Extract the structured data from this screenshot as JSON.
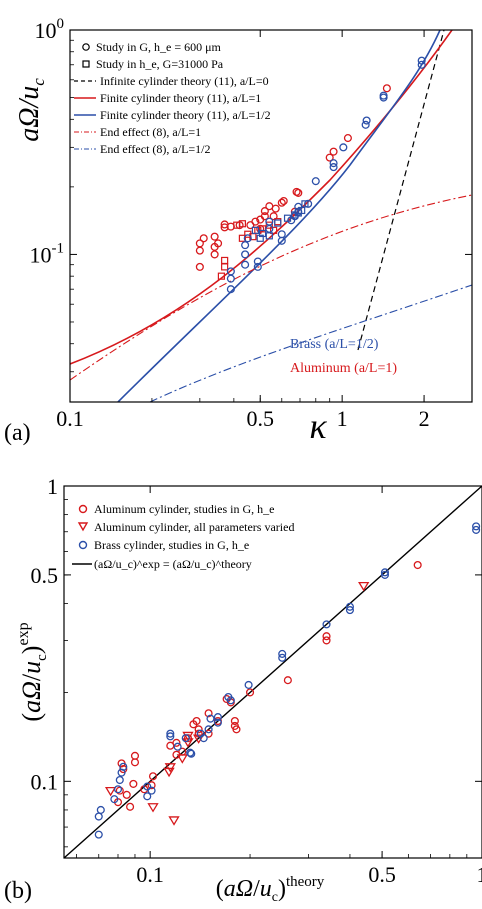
{
  "chart_data": [
    {
      "panel_label": "(a)",
      "type": "scatter",
      "xscale": "log",
      "yscale": "log",
      "xlim": [
        0.1,
        3.0
      ],
      "ylim": [
        0.022,
        1.0
      ],
      "xlabel": "κ",
      "ylabel": "aΩ/u_c",
      "xticks": [
        {
          "value": 0.1,
          "label": "0.1"
        },
        {
          "value": 0.5,
          "label": "0.5"
        },
        {
          "value": 1,
          "label": "1"
        },
        {
          "value": 2,
          "label": "2"
        }
      ],
      "yticks": [
        {
          "value": 0.1,
          "label": "10^-1"
        },
        {
          "value": 1,
          "label": "10^0"
        }
      ],
      "legend": {
        "placement": "top-left",
        "entries": [
          {
            "marker": "circle",
            "color": "#000000",
            "label": "Study in G, h_e = 600 μm"
          },
          {
            "marker": "square",
            "color": "#000000",
            "label": "Study in h_e, G=31000 Pa"
          },
          {
            "line": "dashed",
            "color": "#000000",
            "label": "Infinite cylinder theory (11), a/L=0"
          },
          {
            "line": "solid",
            "color": "#d7191c",
            "label": "Finite cylinder theory (11), a/L=1"
          },
          {
            "line": "solid",
            "color": "#2b4fa8",
            "label": "Finite cylinder theory (11), a/L=1/2"
          },
          {
            "line": "dashdot",
            "color": "#d7191c",
            "label": "End effect (8), a/L=1"
          },
          {
            "line": "dashdot",
            "color": "#2b4fa8",
            "label": "End effect (8), a/L=1/2"
          }
        ]
      },
      "annotations": [
        {
          "text": "Brass (a/L=1/2)",
          "color": "#2b4fa8"
        },
        {
          "text": "Aluminum (a/L=1)",
          "color": "#d7191c"
        }
      ],
      "series": [
        {
          "kind": "points",
          "marker": "circle",
          "color": "#d7191c",
          "points": [
            [
              0.3,
              0.088
            ],
            [
              0.3,
              0.104
            ],
            [
              0.3,
              0.112
            ],
            [
              0.31,
              0.118
            ],
            [
              0.34,
              0.1
            ],
            [
              0.34,
              0.108
            ],
            [
              0.34,
              0.12
            ],
            [
              0.35,
              0.112
            ],
            [
              0.37,
              0.132
            ],
            [
              0.37,
              0.136
            ],
            [
              0.39,
              0.133
            ],
            [
              0.42,
              0.135
            ],
            [
              0.46,
              0.135
            ],
            [
              0.48,
              0.14
            ],
            [
              0.5,
              0.13
            ],
            [
              0.5,
              0.143
            ],
            [
              0.52,
              0.148
            ],
            [
              0.52,
              0.156
            ],
            [
              0.54,
              0.164
            ],
            [
              0.56,
              0.148
            ],
            [
              0.57,
              0.16
            ],
            [
              0.6,
              0.17
            ],
            [
              0.61,
              0.173
            ],
            [
              0.67,
              0.155
            ],
            [
              0.68,
              0.19
            ],
            [
              0.69,
              0.188
            ],
            [
              0.9,
              0.27
            ],
            [
              0.93,
              0.287
            ],
            [
              1.05,
              0.33
            ],
            [
              1.46,
              0.55
            ]
          ]
        },
        {
          "kind": "points",
          "marker": "square",
          "color": "#d7191c",
          "points": [
            [
              0.36,
              0.08
            ],
            [
              0.37,
              0.088
            ],
            [
              0.37,
              0.094
            ],
            [
              0.43,
              0.118
            ],
            [
              0.45,
              0.123
            ],
            [
              0.47,
              0.12
            ],
            [
              0.49,
              0.128
            ],
            [
              0.51,
              0.13
            ],
            [
              0.54,
              0.135
            ],
            [
              0.56,
              0.128
            ],
            [
              0.58,
              0.14
            ],
            [
              0.41,
              0.135
            ],
            [
              0.43,
              0.137
            ]
          ]
        },
        {
          "kind": "points",
          "marker": "circle",
          "color": "#2b4fa8",
          "points": [
            [
              0.39,
              0.07
            ],
            [
              0.39,
              0.078
            ],
            [
              0.39,
              0.084
            ],
            [
              0.44,
              0.09
            ],
            [
              0.44,
              0.1
            ],
            [
              0.44,
              0.11
            ],
            [
              0.45,
              0.118
            ],
            [
              0.49,
              0.088
            ],
            [
              0.49,
              0.093
            ],
            [
              0.54,
              0.13
            ],
            [
              0.54,
              0.14
            ],
            [
              0.6,
              0.115
            ],
            [
              0.6,
              0.123
            ],
            [
              0.65,
              0.142
            ],
            [
              0.67,
              0.148
            ],
            [
              0.69,
              0.155
            ],
            [
              0.69,
              0.163
            ],
            [
              0.75,
              0.168
            ],
            [
              0.8,
              0.212
            ],
            [
              0.93,
              0.245
            ],
            [
              0.93,
              0.255
            ],
            [
              1.01,
              0.3
            ],
            [
              1.22,
              0.378
            ],
            [
              1.23,
              0.395
            ],
            [
              1.42,
              0.5
            ],
            [
              1.42,
              0.51
            ],
            [
              1.96,
              0.7
            ],
            [
              1.96,
              0.73
            ]
          ]
        },
        {
          "kind": "points",
          "marker": "square",
          "color": "#2b4fa8",
          "points": [
            [
              0.48,
              0.128
            ],
            [
              0.5,
              0.118
            ],
            [
              0.51,
              0.124
            ],
            [
              0.54,
              0.121
            ],
            [
              0.58,
              0.138
            ],
            [
              0.63,
              0.145
            ],
            [
              0.67,
              0.15
            ],
            [
              0.69,
              0.153
            ],
            [
              0.71,
              0.157
            ],
            [
              0.73,
              0.168
            ]
          ]
        }
      ]
    },
    {
      "panel_label": "(b)",
      "type": "scatter",
      "xscale": "log",
      "yscale": "log",
      "xlim": [
        0.055,
        1.0
      ],
      "ylim": [
        0.055,
        1.0
      ],
      "xlabel": "(aΩ/u_c)^theory",
      "ylabel": "(aΩ/u_c)^exp",
      "xticks": [
        {
          "value": 0.1,
          "label": "0.1"
        },
        {
          "value": 0.5,
          "label": "0.5"
        },
        {
          "value": 1,
          "label": "1"
        }
      ],
      "yticks": [
        {
          "value": 0.1,
          "label": "0.1"
        },
        {
          "value": 0.5,
          "label": "0.5"
        },
        {
          "value": 1,
          "label": "1"
        }
      ],
      "legend": {
        "placement": "top-left",
        "entries": [
          {
            "marker": "circle",
            "color": "#d7191c",
            "label": "Aluminum cylinder, studies in G, h_e"
          },
          {
            "marker": "triangle-down",
            "color": "#d7191c",
            "label": "Aluminum cylinder, all parameters varied"
          },
          {
            "marker": "circle",
            "color": "#2b4fa8",
            "label": "Brass cylinder, studies in G, h_e"
          },
          {
            "line": "solid",
            "color": "#000000",
            "label": "(aΩ/u_c)^exp = (aΩ/u_c)^theory"
          }
        ]
      },
      "series": [
        {
          "kind": "points",
          "marker": "circle",
          "color": "#d7191c",
          "points": [
            [
              0.08,
              0.085
            ],
            [
              0.081,
              0.093
            ],
            [
              0.082,
              0.115
            ],
            [
              0.083,
              0.11
            ],
            [
              0.085,
              0.09
            ],
            [
              0.087,
              0.082
            ],
            [
              0.089,
              0.098
            ],
            [
              0.09,
              0.116
            ],
            [
              0.09,
              0.122
            ],
            [
              0.096,
              0.094
            ],
            [
              0.101,
              0.097
            ],
            [
              0.102,
              0.104
            ],
            [
              0.115,
              0.132
            ],
            [
              0.12,
              0.123
            ],
            [
              0.12,
              0.135
            ],
            [
              0.125,
              0.126
            ],
            [
              0.13,
              0.14
            ],
            [
              0.135,
              0.156
            ],
            [
              0.138,
              0.16
            ],
            [
              0.14,
              0.15
            ],
            [
              0.14,
              0.145
            ],
            [
              0.15,
              0.145
            ],
            [
              0.15,
              0.17
            ],
            [
              0.16,
              0.16
            ],
            [
              0.17,
              0.19
            ],
            [
              0.175,
              0.185
            ],
            [
              0.18,
              0.16
            ],
            [
              0.18,
              0.154
            ],
            [
              0.182,
              0.15
            ],
            [
              0.2,
              0.2
            ],
            [
              0.26,
              0.22
            ],
            [
              0.34,
              0.31
            ],
            [
              0.34,
              0.3
            ],
            [
              0.64,
              0.54
            ]
          ]
        },
        {
          "kind": "points",
          "marker": "triangle-down",
          "color": "#d7191c",
          "points": [
            [
              0.076,
              0.093
            ],
            [
              0.102,
              0.082
            ],
            [
              0.114,
              0.108
            ],
            [
              0.115,
              0.112
            ],
            [
              0.125,
              0.12
            ],
            [
              0.13,
              0.136
            ],
            [
              0.13,
              0.143
            ],
            [
              0.14,
              0.14
            ],
            [
              0.44,
              0.46
            ],
            [
              0.118,
              0.074
            ]
          ]
        },
        {
          "kind": "points",
          "marker": "circle",
          "color": "#2b4fa8",
          "points": [
            [
              0.07,
              0.066
            ],
            [
              0.07,
              0.076
            ],
            [
              0.071,
              0.08
            ],
            [
              0.078,
              0.087
            ],
            [
              0.08,
              0.094
            ],
            [
              0.081,
              0.101
            ],
            [
              0.082,
              0.107
            ],
            [
              0.083,
              0.112
            ],
            [
              0.098,
              0.089
            ],
            [
              0.098,
              0.096
            ],
            [
              0.101,
              0.093
            ],
            [
              0.115,
              0.142
            ],
            [
              0.115,
              0.145
            ],
            [
              0.121,
              0.131
            ],
            [
              0.128,
              0.14
            ],
            [
              0.132,
              0.125
            ],
            [
              0.133,
              0.124
            ],
            [
              0.142,
              0.145
            ],
            [
              0.145,
              0.14
            ],
            [
              0.15,
              0.15
            ],
            [
              0.152,
              0.163
            ],
            [
              0.16,
              0.165
            ],
            [
              0.16,
              0.158
            ],
            [
              0.172,
              0.193
            ],
            [
              0.175,
              0.188
            ],
            [
              0.198,
              0.212
            ],
            [
              0.25,
              0.262
            ],
            [
              0.25,
              0.27
            ],
            [
              0.34,
              0.34
            ],
            [
              0.4,
              0.39
            ],
            [
              0.4,
              0.38
            ],
            [
              0.51,
              0.5
            ],
            [
              0.51,
              0.51
            ],
            [
              0.96,
              0.73
            ],
            [
              0.96,
              0.71
            ]
          ]
        }
      ]
    }
  ]
}
